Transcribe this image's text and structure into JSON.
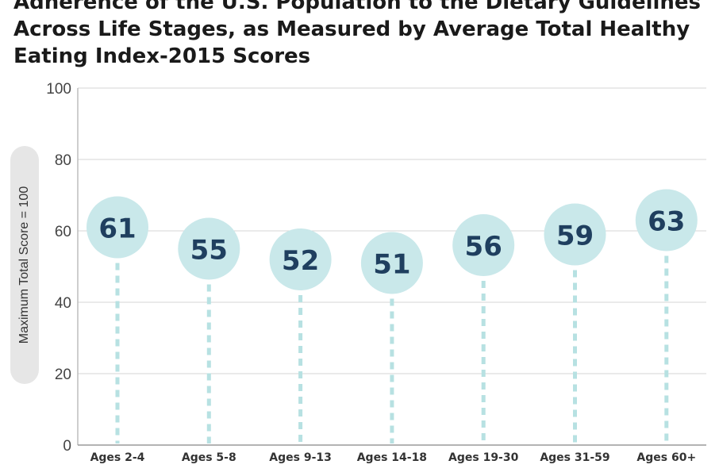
{
  "title": {
    "line1": "Adherence of the U.S. Population to the Dietary Guidelines",
    "line2": "Across Life Stages, as Measured by Average Total Healthy",
    "line3": "Eating Index-2015 Scores"
  },
  "chart_data": {
    "type": "bar",
    "categories": [
      "Ages 2-4",
      "Ages 5-8",
      "Ages 9-13",
      "Ages 14-18",
      "Ages 19-30",
      "Ages 31-59",
      "Ages 60+"
    ],
    "values": [
      61,
      55,
      52,
      51,
      56,
      59,
      63
    ],
    "ylabel": "Maximum Total Score = 100",
    "ylim": [
      0,
      100
    ],
    "yticks": [
      0,
      20,
      40,
      60,
      80,
      100
    ],
    "grid": true,
    "colors": {
      "bubble": "#c9e8ea",
      "value_text": "#1f3f5f",
      "stem": "#b7e1e2",
      "grid": "#d6d6d6",
      "axis_text": "#444444"
    }
  }
}
